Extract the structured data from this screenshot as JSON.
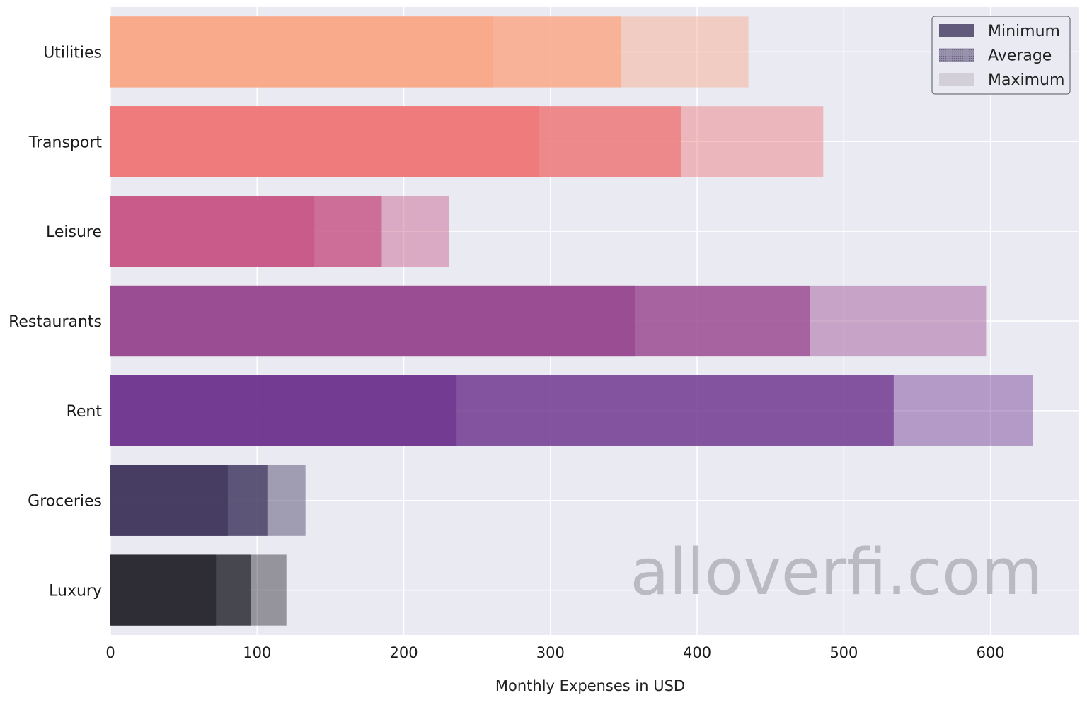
{
  "chart_data": {
    "type": "bar",
    "orientation": "horizontal",
    "stacked": true,
    "categories": [
      "Utilities",
      "Transport",
      "Leisure",
      "Restaurants",
      "Rent",
      "Groceries",
      "Luxury"
    ],
    "segments": [
      "Minimum",
      "Average",
      "Maximum"
    ],
    "values": {
      "Minimum": [
        261,
        292,
        139,
        358,
        236,
        80,
        72
      ],
      "Average": [
        348,
        389,
        185,
        477,
        534,
        107,
        96
      ],
      "Maximum": [
        435,
        486,
        231,
        597,
        629,
        133,
        120
      ]
    },
    "category_colors": [
      "#f9a98a",
      "#ef7a7b",
      "#c85b8a",
      "#9b4d93",
      "#733b92",
      "#463d63",
      "#2e2d36"
    ],
    "xlabel": "Monthly Expenses in USD",
    "ylabel": "",
    "xlim": [
      0,
      660
    ],
    "xticks": [
      0,
      100,
      200,
      300,
      400,
      500,
      600
    ],
    "grid": true,
    "background": "#eaeaf2",
    "legend": {
      "position": "top-right",
      "entries": [
        "Minimum",
        "Average",
        "Maximum"
      ]
    },
    "watermark": "alloverfi.com"
  }
}
